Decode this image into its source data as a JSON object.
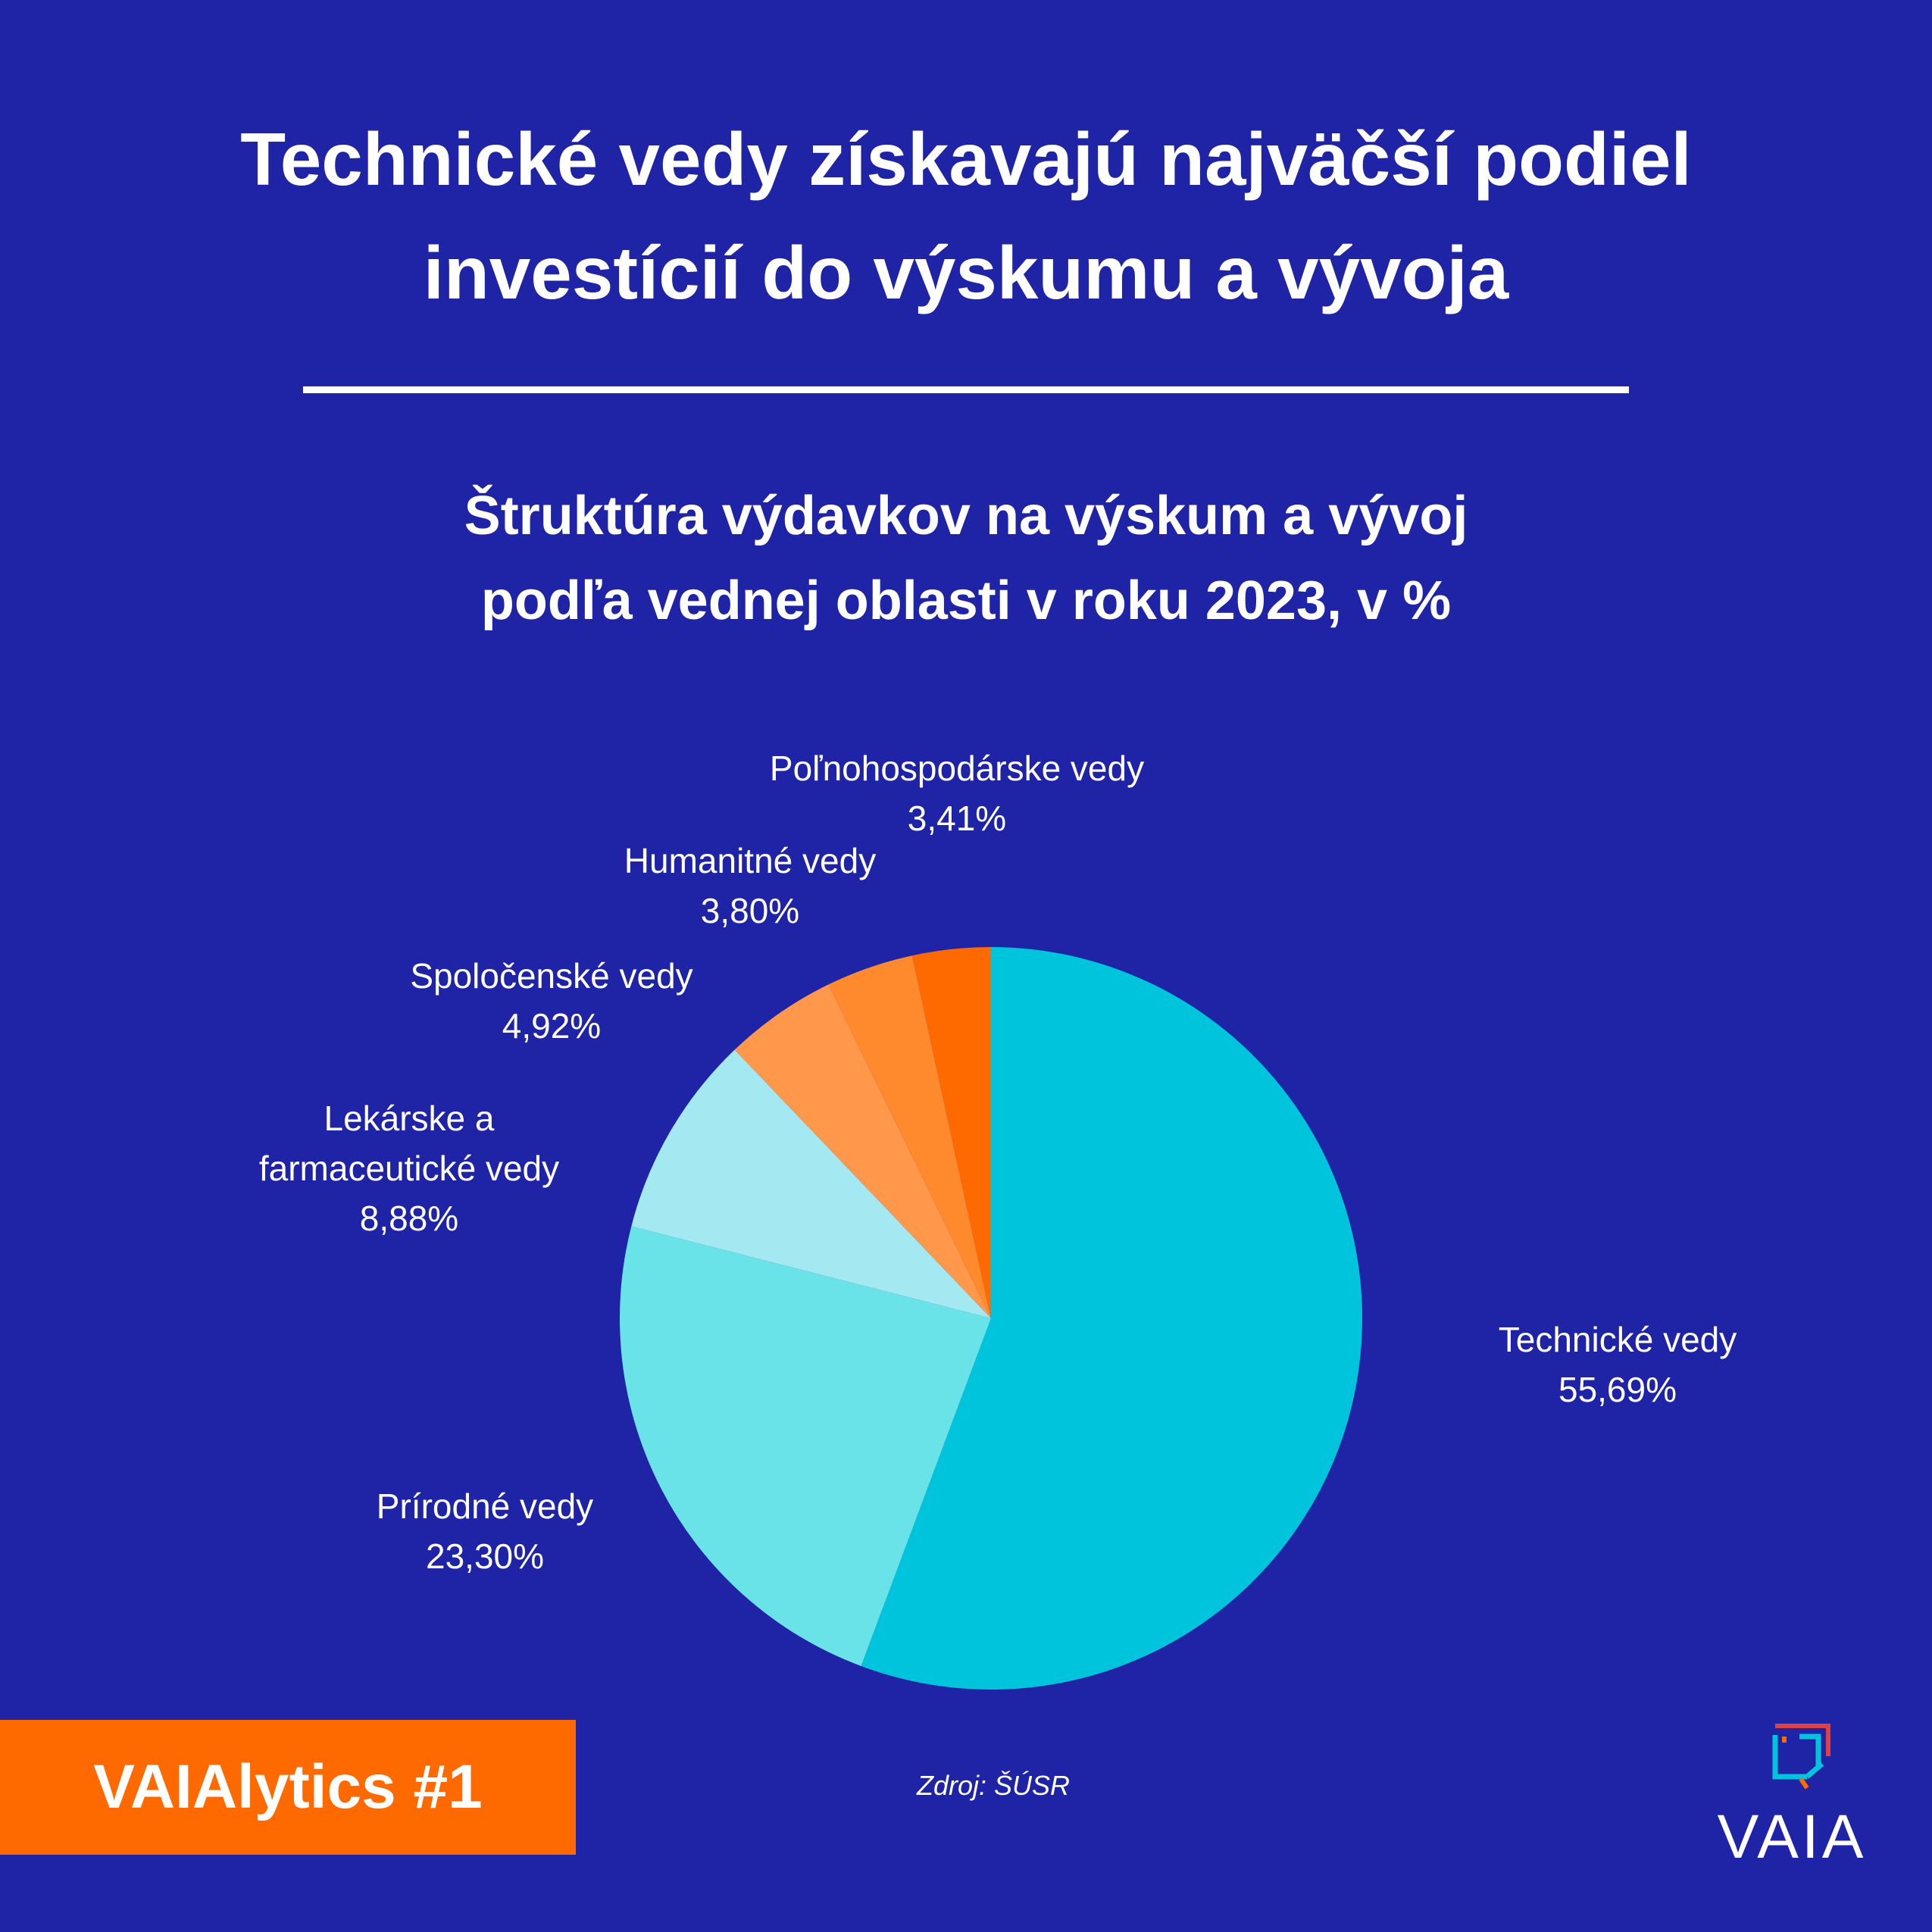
{
  "header": {
    "title_line1": "Technické vedy získavajú najväčší podiel",
    "title_line2": "investícií do výskumu a vývoja"
  },
  "chart_data": {
    "type": "pie",
    "title_line1": "Štruktúra výdavkov na výskum a vývoj",
    "title_line2": "podľa vednej oblasti v roku 2023, v %",
    "slices": [
      {
        "name": "Technické vedy",
        "value": 55.69,
        "label": "55,69%",
        "color": "#00c4db"
      },
      {
        "name": "Prírodné vedy",
        "value": 23.3,
        "label": "23,30%",
        "color": "#69e3e8"
      },
      {
        "name": "Lekárske a farmaceutické vedy",
        "name_lines": [
          "Lekárske a",
          "farmaceutické vedy"
        ],
        "value": 8.88,
        "label": "8,88%",
        "color": "#a4e8f2"
      },
      {
        "name": "Spoločenské vedy",
        "value": 4.92,
        "label": "4,92%",
        "color": "#ff984a"
      },
      {
        "name": "Humanitné vedy",
        "value": 3.8,
        "label": "3,80%",
        "color": "#ff8a2e"
      },
      {
        "name": "Poľnohospodárske vedy",
        "value": 3.41,
        "label": "3,41%",
        "color": "#ff6a00"
      }
    ],
    "start_angle_deg": 0,
    "direction": "clockwise",
    "legend": "none"
  },
  "footer": {
    "badge": "VAIAlytics #1",
    "badge_color": "#ff6a00",
    "source": "Zdroj: ŠÚSR",
    "logo_text": "VAIA"
  },
  "colors": {
    "background": "#1f23a6",
    "text": "#ffffff"
  }
}
